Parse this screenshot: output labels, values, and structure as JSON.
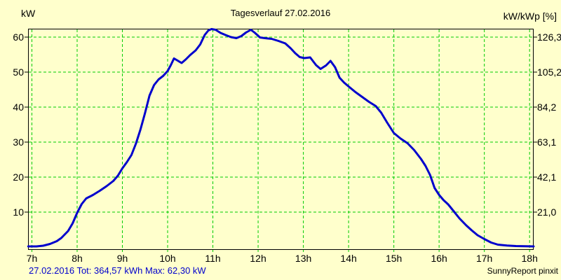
{
  "header": {
    "title": "Tagesverlauf 27.02.2016",
    "left_axis_unit": "kW",
    "right_axis_unit": "kW/kWp [%]"
  },
  "footer": {
    "summary": "27.02.2016 Tot: 364,57 kWh Max: 62,30 kW",
    "credit": "SunnyReport pinxit"
  },
  "colors": {
    "background": "#FFFFCC",
    "grid": "#00CC00",
    "frame": "#000000",
    "curve": "#0000CC",
    "summary_text": "#0000CC"
  },
  "chart_data": {
    "type": "line",
    "title": "Tagesverlauf 27.02.2016",
    "xlabel": "",
    "ylabel_left": "kW",
    "ylabel_right": "kW/kWp [%]",
    "grid": true,
    "legend": "none",
    "xlim": [
      6.915,
      18.09
    ],
    "ylim": [
      -0.8,
      62.4
    ],
    "x_ticks": [
      {
        "value": 7,
        "label": "7h"
      },
      {
        "value": 8,
        "label": "8h"
      },
      {
        "value": 9,
        "label": "9h"
      },
      {
        "value": 10,
        "label": "10h"
      },
      {
        "value": 11,
        "label": "11h"
      },
      {
        "value": 12,
        "label": "12h"
      },
      {
        "value": 13,
        "label": "13h"
      },
      {
        "value": 14,
        "label": "14h"
      },
      {
        "value": 15,
        "label": "15h"
      },
      {
        "value": 16,
        "label": "16h"
      },
      {
        "value": 17,
        "label": "17h"
      },
      {
        "value": 18,
        "label": "18h"
      }
    ],
    "left_ticks": [
      {
        "value": 60,
        "label": "60"
      },
      {
        "value": 50,
        "label": "50"
      },
      {
        "value": 40,
        "label": "40"
      },
      {
        "value": 30,
        "label": "30"
      },
      {
        "value": 20,
        "label": "20"
      },
      {
        "value": 10,
        "label": "10"
      }
    ],
    "right_ticks": [
      {
        "value": 60,
        "label": "126,3"
      },
      {
        "value": 50,
        "label": "105,2"
      },
      {
        "value": 40,
        "label": "84,2"
      },
      {
        "value": 30,
        "label": "63,1"
      },
      {
        "value": 20,
        "label": "42,1"
      },
      {
        "value": 10,
        "label": "21,0"
      }
    ],
    "total_label": "Tot: 364,57 kWh",
    "max_label": "Max: 62,30 kW",
    "series": [
      {
        "name": "kW",
        "points": [
          [
            6.92,
            0.2
          ],
          [
            7.1,
            0.2
          ],
          [
            7.25,
            0.4
          ],
          [
            7.4,
            0.9
          ],
          [
            7.55,
            1.7
          ],
          [
            7.65,
            2.6
          ],
          [
            7.8,
            4.6
          ],
          [
            7.9,
            6.8
          ],
          [
            8.0,
            9.8
          ],
          [
            8.1,
            12.3
          ],
          [
            8.2,
            13.9
          ],
          [
            8.35,
            14.9
          ],
          [
            8.5,
            16.1
          ],
          [
            8.65,
            17.4
          ],
          [
            8.8,
            18.9
          ],
          [
            8.9,
            20.4
          ],
          [
            9.0,
            22.5
          ],
          [
            9.1,
            24.3
          ],
          [
            9.2,
            26.3
          ],
          [
            9.3,
            29.6
          ],
          [
            9.4,
            33.6
          ],
          [
            9.5,
            38.3
          ],
          [
            9.6,
            43.3
          ],
          [
            9.7,
            46.3
          ],
          [
            9.8,
            47.9
          ],
          [
            9.9,
            48.9
          ],
          [
            10.0,
            50.3
          ],
          [
            10.07,
            52.0
          ],
          [
            10.14,
            53.9
          ],
          [
            10.22,
            53.3
          ],
          [
            10.31,
            52.6
          ],
          [
            10.4,
            53.6
          ],
          [
            10.5,
            54.9
          ],
          [
            10.62,
            56.2
          ],
          [
            10.72,
            57.9
          ],
          [
            10.82,
            60.6
          ],
          [
            10.9,
            61.9
          ],
          [
            10.97,
            62.3
          ],
          [
            11.06,
            62.1
          ],
          [
            11.17,
            61.2
          ],
          [
            11.28,
            60.6
          ],
          [
            11.4,
            60.0
          ],
          [
            11.52,
            59.7
          ],
          [
            11.63,
            60.3
          ],
          [
            11.73,
            61.3
          ],
          [
            11.84,
            62.1
          ],
          [
            11.93,
            61.2
          ],
          [
            12.04,
            59.9
          ],
          [
            12.15,
            59.7
          ],
          [
            12.3,
            59.5
          ],
          [
            12.45,
            58.9
          ],
          [
            12.6,
            58.2
          ],
          [
            12.72,
            56.8
          ],
          [
            12.82,
            55.4
          ],
          [
            12.92,
            54.3
          ],
          [
            13.02,
            54.0
          ],
          [
            13.15,
            54.2
          ],
          [
            13.28,
            52.0
          ],
          [
            13.38,
            50.9
          ],
          [
            13.5,
            51.9
          ],
          [
            13.6,
            53.2
          ],
          [
            13.7,
            51.4
          ],
          [
            13.8,
            48.4
          ],
          [
            13.9,
            47.0
          ],
          [
            14.0,
            45.9
          ],
          [
            14.15,
            44.3
          ],
          [
            14.3,
            42.9
          ],
          [
            14.45,
            41.5
          ],
          [
            14.6,
            40.3
          ],
          [
            14.72,
            38.4
          ],
          [
            14.85,
            35.6
          ],
          [
            15.0,
            32.6
          ],
          [
            15.15,
            31.0
          ],
          [
            15.3,
            29.7
          ],
          [
            15.45,
            27.7
          ],
          [
            15.6,
            25.2
          ],
          [
            15.7,
            23.2
          ],
          [
            15.8,
            20.6
          ],
          [
            15.9,
            16.9
          ],
          [
            16.0,
            14.9
          ],
          [
            16.1,
            13.4
          ],
          [
            16.2,
            12.2
          ],
          [
            16.32,
            10.3
          ],
          [
            16.45,
            8.2
          ],
          [
            16.6,
            6.2
          ],
          [
            16.72,
            4.8
          ],
          [
            16.85,
            3.4
          ],
          [
            17.0,
            2.3
          ],
          [
            17.15,
            1.3
          ],
          [
            17.3,
            0.7
          ],
          [
            17.5,
            0.45
          ],
          [
            17.7,
            0.3
          ],
          [
            17.9,
            0.25
          ],
          [
            18.09,
            0.2
          ]
        ]
      }
    ]
  }
}
